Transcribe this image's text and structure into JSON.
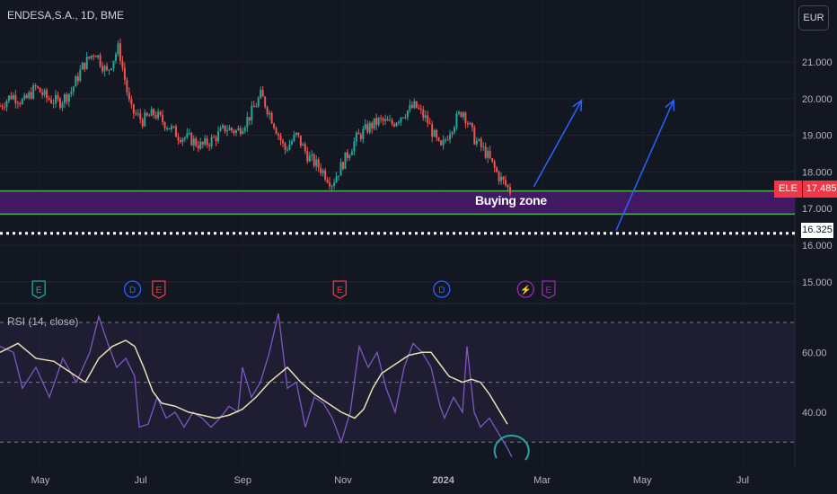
{
  "header": {
    "symbol_title": "ENDESA,S.A., 1D, BME",
    "currency": "EUR"
  },
  "price_tag": {
    "symbol": "ELE",
    "value": "17.485"
  },
  "level_tag": {
    "value": "16.325"
  },
  "zone": {
    "label": "Buying zone",
    "top": 17.48,
    "bottom": 16.85,
    "fill": "#4a1a6e",
    "line": "#4caf50"
  },
  "dotted_level": 16.325,
  "rsi_panel": {
    "title": "RSI (14, close)",
    "levels": [
      70,
      50,
      30
    ],
    "ticks": [
      "60.00",
      "40.00"
    ]
  },
  "colors": {
    "up": "#26a69a",
    "down": "#ef5350",
    "rsi": "#7e57c2",
    "rsi_ma": "#e8dfb0",
    "arrow": "#2962ff",
    "circle": "#26a69a"
  },
  "chart_data": [
    {
      "type": "candlestick",
      "title": "ENDESA,S.A., 1D, BME",
      "yaxis_ticks": [
        "21.000",
        "20.000",
        "19.000",
        "18.000",
        "17.000",
        "16.000",
        "15.000"
      ],
      "xaxis_ticks": [
        "May",
        "Jul",
        "Sep",
        "Nov",
        "2024",
        "Mar",
        "May",
        "Jul"
      ],
      "ylim": [
        14.7,
        22.2
      ],
      "close_series": [
        {
          "date": "2023-04-17",
          "close": 19.8
        },
        {
          "date": "2023-04-24",
          "close": 20.1
        },
        {
          "date": "2023-05-01",
          "close": 19.9
        },
        {
          "date": "2023-05-08",
          "close": 20.3
        },
        {
          "date": "2023-05-15",
          "close": 20.0
        },
        {
          "date": "2023-05-22",
          "close": 19.9
        },
        {
          "date": "2023-05-29",
          "close": 20.2
        },
        {
          "date": "2023-06-05",
          "close": 20.9
        },
        {
          "date": "2023-06-12",
          "close": 21.3
        },
        {
          "date": "2023-06-19",
          "close": 20.7
        },
        {
          "date": "2023-06-26",
          "close": 21.4
        },
        {
          "date": "2023-07-03",
          "close": 19.7
        },
        {
          "date": "2023-07-10",
          "close": 19.4
        },
        {
          "date": "2023-07-17",
          "close": 19.6
        },
        {
          "date": "2023-07-24",
          "close": 19.3
        },
        {
          "date": "2023-07-31",
          "close": 19.0
        },
        {
          "date": "2023-08-07",
          "close": 18.9
        },
        {
          "date": "2023-08-14",
          "close": 18.7
        },
        {
          "date": "2023-08-21",
          "close": 18.9
        },
        {
          "date": "2023-08-28",
          "close": 19.2
        },
        {
          "date": "2023-09-04",
          "close": 19.1
        },
        {
          "date": "2023-09-11",
          "close": 19.5
        },
        {
          "date": "2023-09-18",
          "close": 20.1
        },
        {
          "date": "2023-09-25",
          "close": 19.4
        },
        {
          "date": "2023-10-02",
          "close": 18.6
        },
        {
          "date": "2023-10-09",
          "close": 19.0
        },
        {
          "date": "2023-10-16",
          "close": 18.4
        },
        {
          "date": "2023-10-23",
          "close": 18.1
        },
        {
          "date": "2023-10-30",
          "close": 17.7
        },
        {
          "date": "2023-11-06",
          "close": 18.3
        },
        {
          "date": "2023-11-13",
          "close": 18.9
        },
        {
          "date": "2023-11-20",
          "close": 19.2
        },
        {
          "date": "2023-11-27",
          "close": 19.4
        },
        {
          "date": "2023-12-04",
          "close": 19.3
        },
        {
          "date": "2023-12-11",
          "close": 19.6
        },
        {
          "date": "2023-12-18",
          "close": 19.8
        },
        {
          "date": "2023-12-25",
          "close": 19.4
        },
        {
          "date": "2024-01-02",
          "close": 18.6
        },
        {
          "date": "2024-01-08",
          "close": 19.2
        },
        {
          "date": "2024-01-15",
          "close": 19.7
        },
        {
          "date": "2024-01-22",
          "close": 18.9
        },
        {
          "date": "2024-01-29",
          "close": 18.5
        },
        {
          "date": "2024-02-05",
          "close": 17.9
        },
        {
          "date": "2024-02-12",
          "close": 17.485
        }
      ],
      "event_markers": [
        {
          "date": "2023-04-30",
          "label": "E",
          "color": "#26a69a"
        },
        {
          "date": "2023-06-26",
          "label": "D",
          "color": "#2962ff"
        },
        {
          "date": "2023-07-12",
          "label": "E",
          "color": "#f23645"
        },
        {
          "date": "2023-10-30",
          "label": "E",
          "color": "#f23645"
        },
        {
          "date": "2023-12-31",
          "label": "D",
          "color": "#2962ff"
        },
        {
          "date": "2024-02-20",
          "label": "⚡",
          "color": "#9c27b0"
        },
        {
          "date": "2024-03-05",
          "label": "E",
          "color": "#9c27b0"
        }
      ],
      "projection_arrows": [
        {
          "from": {
            "date": "2024-02-25",
            "price": 17.6
          },
          "to": {
            "date": "2024-03-25",
            "price": 19.95
          }
        },
        {
          "from": {
            "date": "2024-04-15",
            "price": 16.4
          },
          "to": {
            "date": "2024-05-20",
            "price": 19.95
          }
        }
      ]
    },
    {
      "type": "line",
      "title": "RSI (14, close)",
      "ylim": [
        24,
        76
      ],
      "series": [
        {
          "name": "RSI",
          "values": [
            [
              0,
              62
            ],
            [
              15,
              60
            ],
            [
              25,
              48
            ],
            [
              40,
              55
            ],
            [
              55,
              45
            ],
            [
              70,
              58
            ],
            [
              85,
              50
            ],
            [
              100,
              60
            ],
            [
              110,
              72
            ],
            [
              120,
              63
            ],
            [
              130,
              55
            ],
            [
              140,
              58
            ],
            [
              150,
              52
            ],
            [
              155,
              35
            ],
            [
              165,
              36
            ],
            [
              175,
              45
            ],
            [
              185,
              38
            ],
            [
              195,
              40
            ],
            [
              205,
              35
            ],
            [
              215,
              40
            ],
            [
              225,
              38
            ],
            [
              235,
              35
            ],
            [
              245,
              38
            ],
            [
              255,
              42
            ],
            [
              265,
              40
            ],
            [
              270,
              55
            ],
            [
              280,
              45
            ],
            [
              290,
              50
            ],
            [
              300,
              60
            ],
            [
              310,
              73
            ],
            [
              320,
              48
            ],
            [
              330,
              50
            ],
            [
              340,
              35
            ],
            [
              350,
              45
            ],
            [
              360,
              43
            ],
            [
              370,
              38
            ],
            [
              380,
              30
            ],
            [
              390,
              40
            ],
            [
              400,
              62
            ],
            [
              410,
              55
            ],
            [
              420,
              60
            ],
            [
              430,
              48
            ],
            [
              440,
              40
            ],
            [
              450,
              55
            ],
            [
              460,
              63
            ],
            [
              470,
              60
            ],
            [
              480,
              55
            ],
            [
              490,
              42
            ],
            [
              495,
              38
            ],
            [
              505,
              45
            ],
            [
              515,
              40
            ],
            [
              520,
              62
            ],
            [
              528,
              40
            ],
            [
              535,
              35
            ],
            [
              545,
              38
            ],
            [
              555,
              33
            ],
            [
              565,
              28
            ],
            [
              570,
              25
            ]
          ]
        },
        {
          "name": "RSI-based MA",
          "values": [
            [
              0,
              60
            ],
            [
              20,
              63
            ],
            [
              40,
              58
            ],
            [
              60,
              57
            ],
            [
              80,
              53
            ],
            [
              95,
              50
            ],
            [
              110,
              58
            ],
            [
              125,
              62
            ],
            [
              140,
              64
            ],
            [
              150,
              62
            ],
            [
              160,
              55
            ],
            [
              170,
              47
            ],
            [
              180,
              43
            ],
            [
              195,
              42
            ],
            [
              210,
              40
            ],
            [
              225,
              39
            ],
            [
              240,
              38
            ],
            [
              255,
              39
            ],
            [
              270,
              41
            ],
            [
              285,
              45
            ],
            [
              300,
              50
            ],
            [
              320,
              55
            ],
            [
              335,
              50
            ],
            [
              350,
              46
            ],
            [
              365,
              43
            ],
            [
              380,
              40
            ],
            [
              395,
              38
            ],
            [
              405,
              41
            ],
            [
              415,
              48
            ],
            [
              425,
              53
            ],
            [
              440,
              56
            ],
            [
              455,
              59
            ],
            [
              470,
              60
            ],
            [
              480,
              60
            ],
            [
              490,
              56
            ],
            [
              500,
              52
            ],
            [
              515,
              50
            ],
            [
              525,
              51
            ],
            [
              535,
              50
            ],
            [
              545,
              46
            ],
            [
              555,
              41
            ],
            [
              565,
              36
            ]
          ]
        }
      ]
    }
  ]
}
